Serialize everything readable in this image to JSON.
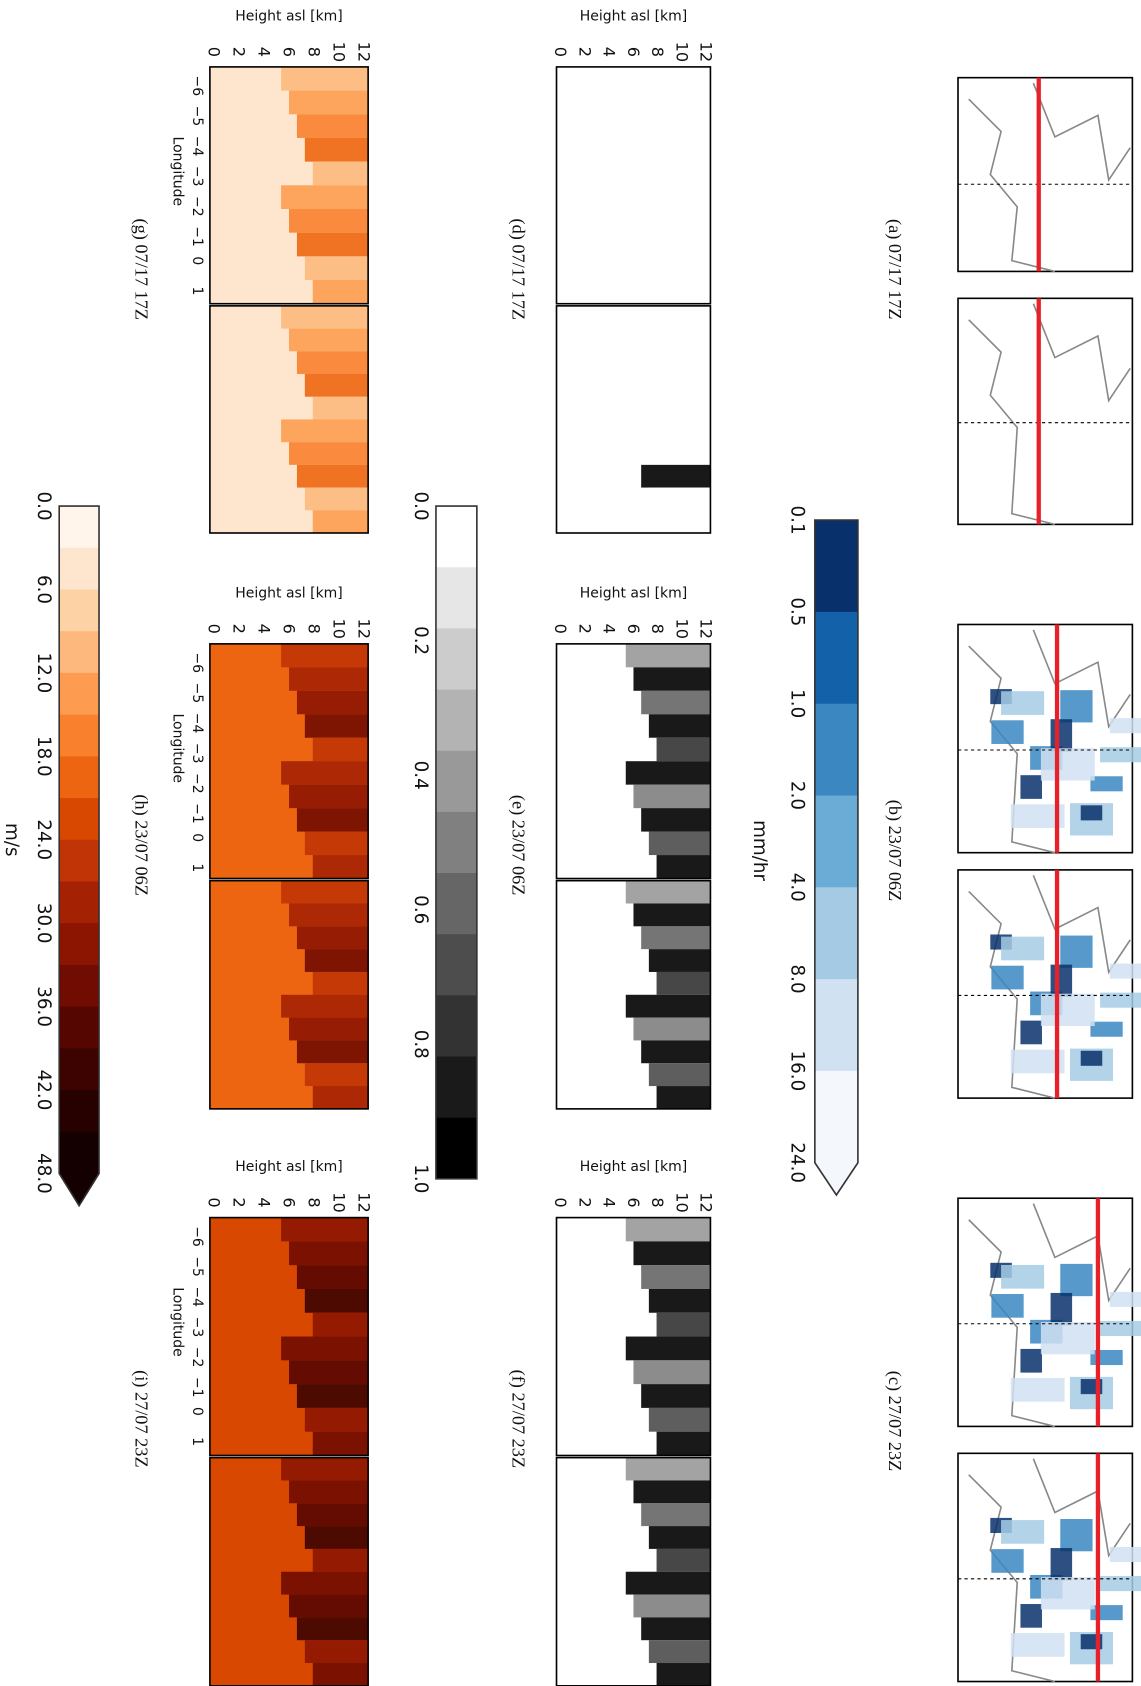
{
  "panels": [
    {
      "label": "(a) 07/17 17Z"
    },
    {
      "label": "(b) 23/07 06Z"
    },
    {
      "label": "(c) 27/07 23Z"
    },
    {
      "label": "(d) 07/17 17Z"
    },
    {
      "label": "(e) 23/07 06Z"
    },
    {
      "label": "(f) 27/07 23Z"
    },
    {
      "label": "(g) 07/17 17Z"
    },
    {
      "label": "(h) 23/07 06Z"
    },
    {
      "label": "(i) 27/07 23Z"
    }
  ],
  "cross_section_axes": {
    "ylabel": "Height asl [km]",
    "xlabel": "Longitude",
    "yticks": [
      "0",
      "2",
      "4",
      "6",
      "8",
      "10",
      "12"
    ],
    "xticks": [
      "−6",
      "−5",
      "−4",
      "−3",
      "−2",
      "−1",
      "0",
      "1"
    ]
  },
  "colorbars": [
    {
      "unit": "mm/hr",
      "ticks": [
        "0.1",
        "0.5",
        "1.0",
        "2.0",
        "4.0",
        "8.0",
        "16.0",
        "24.0"
      ],
      "colors": [
        "#08306b",
        "#1361a9",
        "#3a87c2",
        "#6aacd6",
        "#a5cbe4",
        "#d0e1f2",
        "#f4f8fd"
      ]
    },
    {
      "ticks": [
        "0.0",
        "0.2",
        "0.4",
        "0.6",
        "0.8",
        "1.0"
      ],
      "colors": [
        "#ffffff",
        "#e6e6e6",
        "#cccccc",
        "#b3b3b3",
        "#999999",
        "#808080",
        "#666666",
        "#4d4d4d",
        "#333333",
        "#1a1a1a",
        "#000000"
      ]
    },
    {
      "unit": "m/s",
      "ticks": [
        "0.0",
        "6.0",
        "12.0",
        "18.0",
        "24.0",
        "30.0",
        "36.0",
        "42.0",
        "48.0"
      ],
      "colors": [
        "#fff5eb",
        "#fee6ce",
        "#fdd2a5",
        "#fdb97d",
        "#fd9c51",
        "#f9802d",
        "#ee6511",
        "#d94801",
        "#c03405",
        "#a52103",
        "#8c1502",
        "#700c01",
        "#560601",
        "#3d0300",
        "#270100",
        "#140000"
      ]
    }
  ]
}
